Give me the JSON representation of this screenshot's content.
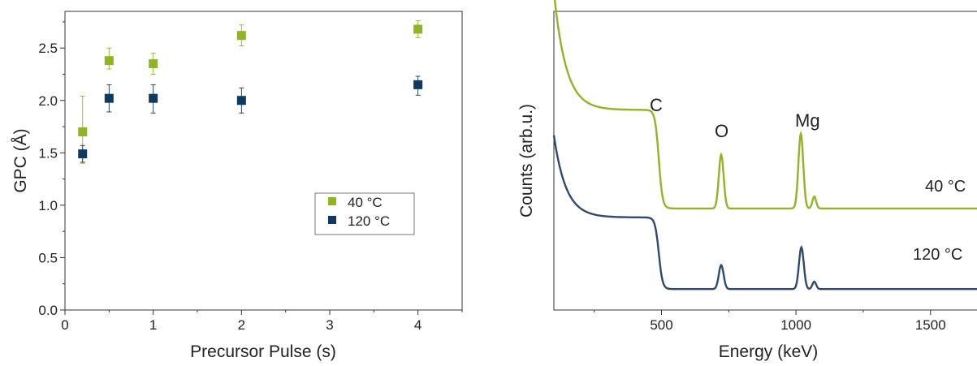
{
  "chart_data": [
    {
      "type": "scatter",
      "xlabel": "Precursor Pulse (s)",
      "ylabel": "GPC (Å)",
      "xlim": [
        0,
        4.5
      ],
      "ylim": [
        0,
        2.85
      ],
      "xticks": [
        0,
        1,
        2,
        3,
        4
      ],
      "yticks": [
        0.0,
        0.5,
        1.0,
        1.5,
        2.0,
        2.5
      ],
      "ytick_labels": [
        "0.0",
        "0.5",
        "1.0",
        "1.5",
        "2.0",
        "2.5"
      ],
      "grid": false,
      "legend_position": "lower-right",
      "series": [
        {
          "name": "40 °C",
          "color": "#8fb523",
          "marker": "square",
          "x": [
            0.2,
            0.5,
            1,
            2,
            4
          ],
          "y": [
            1.7,
            2.38,
            2.35,
            2.62,
            2.68
          ],
          "err_up": [
            0.34,
            0.12,
            0.1,
            0.1,
            0.08
          ],
          "err_down": [
            0.3,
            0.08,
            0.1,
            0.1,
            0.08
          ]
        },
        {
          "name": "120 °C",
          "color": "#0e3a5f",
          "marker": "square",
          "x": [
            0.2,
            0.5,
            1,
            2,
            4
          ],
          "y": [
            1.49,
            2.02,
            2.02,
            2.0,
            2.15
          ],
          "err_up": [
            0.08,
            0.13,
            0.13,
            0.12,
            0.08
          ],
          "err_down": [
            0.08,
            0.13,
            0.14,
            0.12,
            0.1
          ]
        }
      ]
    },
    {
      "type": "line",
      "xlabel": "Energy (keV)",
      "ylabel": "Counts (arb.u.)",
      "xlim": [
        100,
        1700
      ],
      "ylim": [
        0,
        1
      ],
      "xticks": [
        500,
        1000,
        1500
      ],
      "grid": false,
      "peak_labels": [
        {
          "text": "C",
          "x": 480
        },
        {
          "text": "O",
          "x": 720
        },
        {
          "text": "Mg",
          "x": 1020
        }
      ],
      "series": [
        {
          "name": "40 °C",
          "color": "#8fb523",
          "baseline": 0.34,
          "decay_amp": 0.72,
          "edge_level": 0.33,
          "step_x": 490,
          "peaks": [
            {
              "x": 722,
              "height": 0.18,
              "width": 9
            },
            {
              "x": 1018,
              "height": 0.25,
              "width": 9
            },
            {
              "x": 1068,
              "height": 0.04,
              "width": 7
            }
          ]
        },
        {
          "name": "120 °C",
          "color": "#2e4a6e",
          "baseline": 0.07,
          "decay_amp": 0.5,
          "edge_level": 0.24,
          "step_x": 490,
          "peaks": [
            {
              "x": 722,
              "height": 0.08,
              "width": 9
            },
            {
              "x": 1020,
              "height": 0.14,
              "width": 9
            },
            {
              "x": 1068,
              "height": 0.025,
              "width": 7
            }
          ]
        }
      ]
    }
  ]
}
